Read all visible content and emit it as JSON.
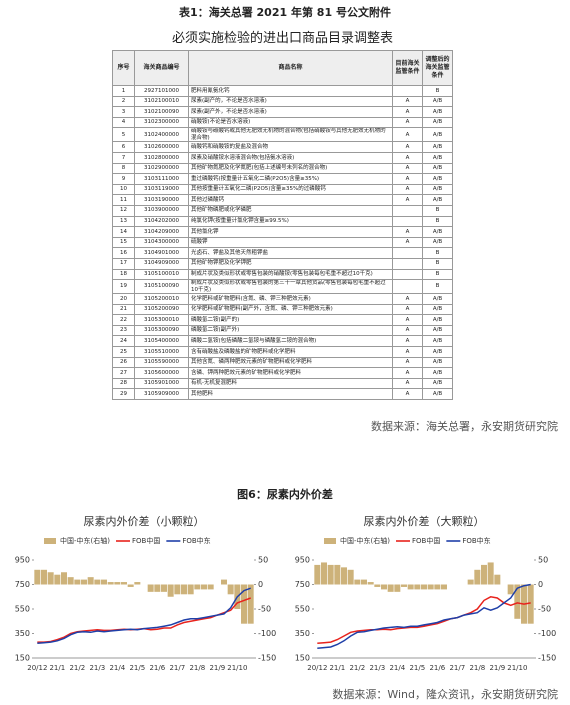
{
  "caption": "表1：海关总署 2021 年第 81 号公文附件",
  "table": {
    "title": "必须实施检验的进出口商品目录调整表",
    "headers": [
      "序号",
      "海关商品编号",
      "商品名称",
      "目前海关监管条件",
      "调整后的海关监管条件"
    ],
    "rows": [
      {
        "no": "1",
        "code": "2927101000",
        "name": "肥料用氰氨化钙",
        "adjusted": "B"
      },
      {
        "no": "2",
        "code": "3102100010",
        "name": "尿素(副产的，不论是否水溶液)",
        "current": "A",
        "adjusted": "A/B"
      },
      {
        "no": "3",
        "code": "3102100090",
        "name": "尿素(副产外，不论是否水溶液)",
        "current": "A",
        "adjusted": "A/B"
      },
      {
        "no": "4",
        "code": "3102300000",
        "name": "硝酸铵(不论是否水溶液)",
        "current": "A",
        "adjusted": "A/B"
      },
      {
        "no": "5",
        "code": "3102400000",
        "name": "硝酸铵与碳酸钙或其他无肥效无机物的混合物(包括硝酸铵与其他无肥效无机物的混合物)",
        "current": "A",
        "adjusted": "A/B"
      },
      {
        "no": "6",
        "code": "3102600000",
        "name": "硝酸钙和硝酸铵的复盐及混合物",
        "current": "A",
        "adjusted": "A/B"
      },
      {
        "no": "7",
        "code": "3102800000",
        "name": "尿素及硝酸铵水溶液混合物(包括氨水溶液)",
        "current": "A",
        "adjusted": "A/B"
      },
      {
        "no": "8",
        "code": "3102900000",
        "name": "其他矿物氮肥及化学氮肥(包括上述编号未列名的混合物)",
        "current": "A",
        "adjusted": "A/B"
      },
      {
        "no": "9",
        "code": "3103111000",
        "name": "重过磷酸钙(按重量计五氧化二磷(P2O5)含量≥35%)",
        "current": "A",
        "adjusted": "A/B"
      },
      {
        "no": "10",
        "code": "3103119000",
        "name": "其他按重量计五氧化二磷(P2O5)含量≥35%的过磷酸钙",
        "current": "A",
        "adjusted": "A/B"
      },
      {
        "no": "11",
        "code": "3103190000",
        "name": "其他过磷酸钙",
        "current": "A",
        "adjusted": "A/B"
      },
      {
        "no": "12",
        "code": "3103900000",
        "name": "其他矿物磷肥或化学磷肥",
        "adjusted": "B"
      },
      {
        "no": "13",
        "code": "3104202000",
        "name": "纯氯化钾(按重量计氯化钾含量≥99.5%)",
        "adjusted": "B"
      },
      {
        "no": "14",
        "code": "3104209000",
        "name": "其他氯化钾",
        "current": "A",
        "adjusted": "A/B"
      },
      {
        "no": "15",
        "code": "3104300000",
        "name": "硫酸钾",
        "current": "A",
        "adjusted": "A/B"
      },
      {
        "no": "16",
        "code": "3104901000",
        "name": "光卤石、钾盐及其他天然粗钾盐",
        "adjusted": "B"
      },
      {
        "no": "17",
        "code": "3104909000",
        "name": "其他矿物钾肥及化学钾肥",
        "adjusted": "B"
      },
      {
        "no": "18",
        "code": "3105100010",
        "name": "制成片状及类似形状或零售包装的硝酸铵(零售包装每包毛重不超过10千克)",
        "adjusted": "B"
      },
      {
        "no": "19",
        "code": "3105100090",
        "name": "制成片状及类似形状或零售包装的第三十一章其他货品(零售包装每包毛重不超过10千克)",
        "adjusted": "B"
      },
      {
        "no": "20",
        "code": "3105200010",
        "name": "化学肥料或矿物肥料(含氮、磷、钾三种肥效元素)",
        "current": "A",
        "adjusted": "A/B"
      },
      {
        "no": "21",
        "code": "3105200090",
        "name": "化学肥料或矿物肥料(副产外，含氮、磷、钾三种肥效元素)",
        "current": "A",
        "adjusted": "A/B"
      },
      {
        "no": "22",
        "code": "3105300010",
        "name": "磷酸氢二铵(副产的)",
        "current": "A",
        "adjusted": "A/B"
      },
      {
        "no": "23",
        "code": "3105300090",
        "name": "磷酸氢二铵(副产外)",
        "current": "A",
        "adjusted": "A/B"
      },
      {
        "no": "24",
        "code": "3105400000",
        "name": "磷酸二氢铵(包括磷酸二氢铵与磷酸氢二铵的混合物)",
        "current": "A",
        "adjusted": "A/B"
      },
      {
        "no": "25",
        "code": "3105510000",
        "name": "含有硝酸盐及磷酸盐的矿物肥料或化学肥料",
        "current": "A",
        "adjusted": "A/B"
      },
      {
        "no": "26",
        "code": "3105590000",
        "name": "其他含氮、磷两种肥效元素的矿物肥料或化学肥料",
        "current": "A",
        "adjusted": "A/B"
      },
      {
        "no": "27",
        "code": "3105600000",
        "name": "含磷、钾两种肥效元素的矿物肥料或化学肥料",
        "current": "A",
        "adjusted": "A/B"
      },
      {
        "no": "28",
        "code": "3105901000",
        "name": "有机-无机复混肥料",
        "current": "A",
        "adjusted": "A/B"
      },
      {
        "no": "29",
        "code": "3105909000",
        "name": "其他肥料",
        "current": "A",
        "adjusted": "A/B"
      }
    ]
  },
  "source1": "数据来源：海关总署，永安期货研究院",
  "figure_caption": "图6：尿素内外价差",
  "chart_data": [
    {
      "type": "line",
      "title": "尿素内外价差（小颗粒）",
      "categories": [
        "20/12",
        null,
        null,
        "21/1",
        null,
        null,
        "21/2",
        null,
        null,
        "21/3",
        null,
        null,
        "21/4",
        null,
        null,
        "21/5",
        null,
        null,
        "21/6",
        null,
        null,
        "21/7",
        null,
        null,
        "21/8",
        null,
        null,
        "21/9",
        null,
        null,
        "21/10",
        null,
        null
      ],
      "ylim": [
        150,
        950
      ],
      "yticks": [
        150,
        350,
        550,
        750,
        950
      ],
      "y2lim": [
        -150,
        50
      ],
      "y2ticks": [
        -150,
        -100,
        -50,
        0,
        50
      ],
      "series": [
        {
          "name": "中国-中东(右轴)",
          "type": "bar",
          "axis": "y2",
          "color": "#cdb27a",
          "values": [
            30,
            30,
            25,
            20,
            25,
            15,
            10,
            10,
            15,
            10,
            10,
            5,
            5,
            5,
            -5,
            5,
            0,
            -15,
            -15,
            -15,
            -25,
            -20,
            -20,
            -20,
            -10,
            -10,
            -10,
            0,
            10,
            -20,
            -50,
            -80,
            -80
          ]
        },
        {
          "name": "FOB中国",
          "color": "#e8231d",
          "values": [
            280,
            280,
            285,
            300,
            320,
            350,
            365,
            370,
            375,
            380,
            375,
            375,
            380,
            385,
            380,
            385,
            390,
            380,
            385,
            395,
            395,
            420,
            440,
            450,
            460,
            470,
            480,
            500,
            520,
            540,
            600,
            620,
            640
          ]
        },
        {
          "name": "FOB中东",
          "color": "#1f3fa8",
          "values": [
            270,
            275,
            280,
            290,
            310,
            340,
            360,
            365,
            360,
            370,
            365,
            370,
            375,
            380,
            385,
            380,
            390,
            395,
            400,
            410,
            420,
            440,
            460,
            470,
            470,
            480,
            490,
            500,
            510,
            560,
            650,
            700,
            720
          ]
        }
      ]
    },
    {
      "type": "line",
      "title": "尿素内外价差（大颗粒）",
      "categories": [
        "20/12",
        null,
        null,
        "21/1",
        null,
        null,
        "21/2",
        null,
        null,
        "21/3",
        null,
        null,
        "21/4",
        null,
        null,
        "21/5",
        null,
        null,
        "21/6",
        null,
        null,
        "21/7",
        null,
        null,
        "21/8",
        null,
        null,
        "21/9",
        null,
        null,
        "21/10",
        null,
        null
      ],
      "ylim": [
        150,
        950
      ],
      "yticks": [
        150,
        350,
        550,
        750,
        950
      ],
      "y2lim": [
        -150,
        50
      ],
      "y2ticks": [
        -150,
        -100,
        -50,
        0,
        50
      ],
      "series": [
        {
          "name": "中国-中东(右轴)",
          "type": "bar",
          "axis": "y2",
          "color": "#cdb27a",
          "values": [
            40,
            45,
            40,
            40,
            35,
            30,
            10,
            10,
            5,
            -5,
            -10,
            -15,
            -15,
            -5,
            -10,
            -10,
            -10,
            -10,
            -10,
            -10,
            0,
            0,
            0,
            10,
            30,
            40,
            45,
            20,
            0,
            -20,
            -70,
            -80,
            -80
          ]
        },
        {
          "name": "FOB中国",
          "color": "#e8231d",
          "values": [
            270,
            275,
            280,
            300,
            330,
            360,
            370,
            375,
            380,
            380,
            385,
            380,
            390,
            395,
            400,
            400,
            410,
            420,
            430,
            450,
            470,
            480,
            500,
            520,
            550,
            620,
            650,
            640,
            600,
            580,
            600,
            590,
            600
          ]
        },
        {
          "name": "FOB中东",
          "color": "#1f3fa8",
          "values": [
            230,
            235,
            240,
            260,
            290,
            330,
            360,
            365,
            375,
            385,
            395,
            400,
            405,
            400,
            410,
            410,
            420,
            430,
            440,
            460,
            470,
            480,
            500,
            510,
            520,
            560,
            540,
            560,
            600,
            640,
            720,
            740,
            750
          ]
        }
      ]
    }
  ],
  "source2": "数据来源：Wind，隆众资讯，永安期货研究院"
}
